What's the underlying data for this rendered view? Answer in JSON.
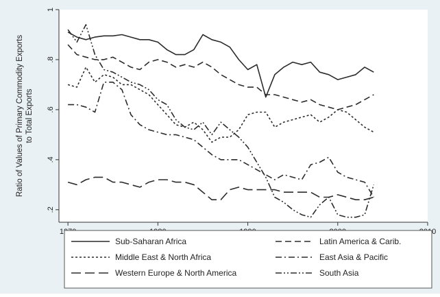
{
  "chart_data": {
    "type": "line",
    "title": "",
    "xlabel": "",
    "ylabel": "Ratio of Values of Primary Commodity Exports to Total Exports",
    "ylabel_lines": [
      "Ratio of Values of Primary Commodity Exports",
      "to Total Exports"
    ],
    "xlim": [
      1969,
      2010
    ],
    "ylim": [
      0.15,
      1.0
    ],
    "x_ticks": [
      1970,
      1980,
      1990,
      2000,
      2010
    ],
    "x_tick_labels": [
      "1970",
      "1980",
      "1990",
      "2000",
      "2010"
    ],
    "y_ticks": [
      0.2,
      0.4,
      0.6,
      0.8,
      1.0
    ],
    "y_tick_labels": [
      ".2",
      ".4",
      ".6",
      ".8",
      "1"
    ],
    "grid": false,
    "legend_position": "bottom",
    "series": [
      {
        "name": "Sub-Saharan Africa",
        "dash": "solid",
        "x": [
          1970,
          1971,
          1972,
          1973,
          1974,
          1975,
          1976,
          1977,
          1978,
          1979,
          1980,
          1981,
          1982,
          1983,
          1984,
          1985,
          1986,
          1987,
          1988,
          1989,
          1990,
          1991,
          1992,
          1993,
          1994,
          1995,
          1996,
          1997,
          1998,
          1999,
          2000,
          2001,
          2002,
          2003,
          2004
        ],
        "values": [
          0.91,
          0.89,
          0.88,
          0.89,
          0.895,
          0.895,
          0.9,
          0.89,
          0.88,
          0.88,
          0.87,
          0.84,
          0.82,
          0.82,
          0.84,
          0.9,
          0.88,
          0.87,
          0.85,
          0.8,
          0.76,
          0.78,
          0.65,
          0.74,
          0.77,
          0.79,
          0.78,
          0.79,
          0.75,
          0.74,
          0.72,
          0.73,
          0.74,
          0.77,
          0.75
        ]
      },
      {
        "name": "Latin America & Carib.",
        "dash": "long",
        "x": [
          1970,
          1971,
          1972,
          1973,
          1974,
          1975,
          1976,
          1977,
          1978,
          1979,
          1980,
          1981,
          1982,
          1983,
          1984,
          1985,
          1986,
          1987,
          1988,
          1989,
          1990,
          1991,
          1992,
          1993,
          1994,
          1995,
          1996,
          1997,
          1998,
          1999,
          2000,
          2001,
          2002,
          2003,
          2004
        ],
        "values": [
          0.86,
          0.82,
          0.81,
          0.8,
          0.8,
          0.81,
          0.79,
          0.77,
          0.76,
          0.79,
          0.8,
          0.79,
          0.77,
          0.78,
          0.77,
          0.79,
          0.77,
          0.74,
          0.72,
          0.7,
          0.69,
          0.69,
          0.66,
          0.66,
          0.65,
          0.64,
          0.63,
          0.64,
          0.62,
          0.61,
          0.6,
          0.61,
          0.62,
          0.64,
          0.66
        ]
      },
      {
        "name": "Middle East & North Africa",
        "dash": "short",
        "x": [
          1970,
          1971,
          1972,
          1973,
          1974,
          1975,
          1976,
          1977,
          1978,
          1979,
          1980,
          1981,
          1982,
          1983,
          1984,
          1985,
          1986,
          1987,
          1988,
          1989,
          1990,
          1991,
          1992,
          1993,
          1994,
          1995,
          1996,
          1997,
          1998,
          1999,
          2000,
          2001,
          2002,
          2003,
          2004
        ],
        "values": [
          0.7,
          0.69,
          0.77,
          0.71,
          0.74,
          0.73,
          0.7,
          0.7,
          0.68,
          0.66,
          0.62,
          0.58,
          0.54,
          0.53,
          0.55,
          0.52,
          0.47,
          0.49,
          0.49,
          0.52,
          0.58,
          0.59,
          0.59,
          0.53,
          0.55,
          0.56,
          0.57,
          0.58,
          0.55,
          0.57,
          0.6,
          0.59,
          0.56,
          0.53,
          0.51
        ]
      },
      {
        "name": "East Asia & Pacific",
        "dash": "dashdot",
        "x": [
          1970,
          1971,
          1972,
          1973,
          1974,
          1975,
          1976,
          1977,
          1978,
          1979,
          1980,
          1981,
          1982,
          1983,
          1984,
          1985,
          1986,
          1987,
          1988,
          1989,
          1990,
          1991,
          1992,
          1993,
          1994,
          1995,
          1996,
          1997,
          1998,
          1999,
          2000,
          2001,
          2002,
          2003,
          2004
        ],
        "values": [
          0.62,
          0.62,
          0.61,
          0.59,
          0.71,
          0.71,
          0.68,
          0.58,
          0.54,
          0.52,
          0.51,
          0.5,
          0.5,
          0.49,
          0.48,
          0.45,
          0.42,
          0.4,
          0.4,
          0.4,
          0.38,
          0.36,
          0.34,
          0.32,
          0.34,
          0.33,
          0.32,
          0.38,
          0.39,
          0.41,
          0.35,
          0.33,
          0.32,
          0.31,
          0.25
        ]
      },
      {
        "name": "Western Europe & North America",
        "dash": "longdash",
        "x": [
          1970,
          1971,
          1972,
          1973,
          1974,
          1975,
          1976,
          1977,
          1978,
          1979,
          1980,
          1981,
          1982,
          1983,
          1984,
          1985,
          1986,
          1987,
          1988,
          1989,
          1990,
          1991,
          1992,
          1993,
          1994,
          1995,
          1996,
          1997,
          1998,
          1999,
          2000,
          2001,
          2002,
          2003,
          2004
        ],
        "values": [
          0.31,
          0.3,
          0.32,
          0.33,
          0.33,
          0.31,
          0.31,
          0.3,
          0.29,
          0.31,
          0.32,
          0.32,
          0.31,
          0.31,
          0.3,
          0.27,
          0.24,
          0.24,
          0.28,
          0.29,
          0.28,
          0.28,
          0.28,
          0.28,
          0.27,
          0.27,
          0.27,
          0.27,
          0.25,
          0.25,
          0.26,
          0.25,
          0.24,
          0.24,
          0.25
        ]
      },
      {
        "name": "South Asia",
        "dash": "dashdotdot",
        "x": [
          1970,
          1971,
          1972,
          1973,
          1974,
          1975,
          1976,
          1977,
          1978,
          1979,
          1980,
          1981,
          1982,
          1983,
          1984,
          1985,
          1986,
          1987,
          1988,
          1989,
          1990,
          1991,
          1992,
          1993,
          1994,
          1995,
          1996,
          1997,
          1998,
          1999,
          2000,
          2001,
          2002,
          2003,
          2004
        ],
        "values": [
          0.92,
          0.87,
          0.94,
          0.82,
          0.76,
          0.75,
          0.73,
          0.71,
          0.7,
          0.68,
          0.64,
          0.62,
          0.56,
          0.53,
          0.52,
          0.55,
          0.5,
          0.55,
          0.52,
          0.49,
          0.45,
          0.39,
          0.33,
          0.25,
          0.23,
          0.2,
          0.18,
          0.17,
          0.22,
          0.25,
          0.18,
          0.17,
          0.17,
          0.18,
          0.3
        ]
      }
    ]
  }
}
